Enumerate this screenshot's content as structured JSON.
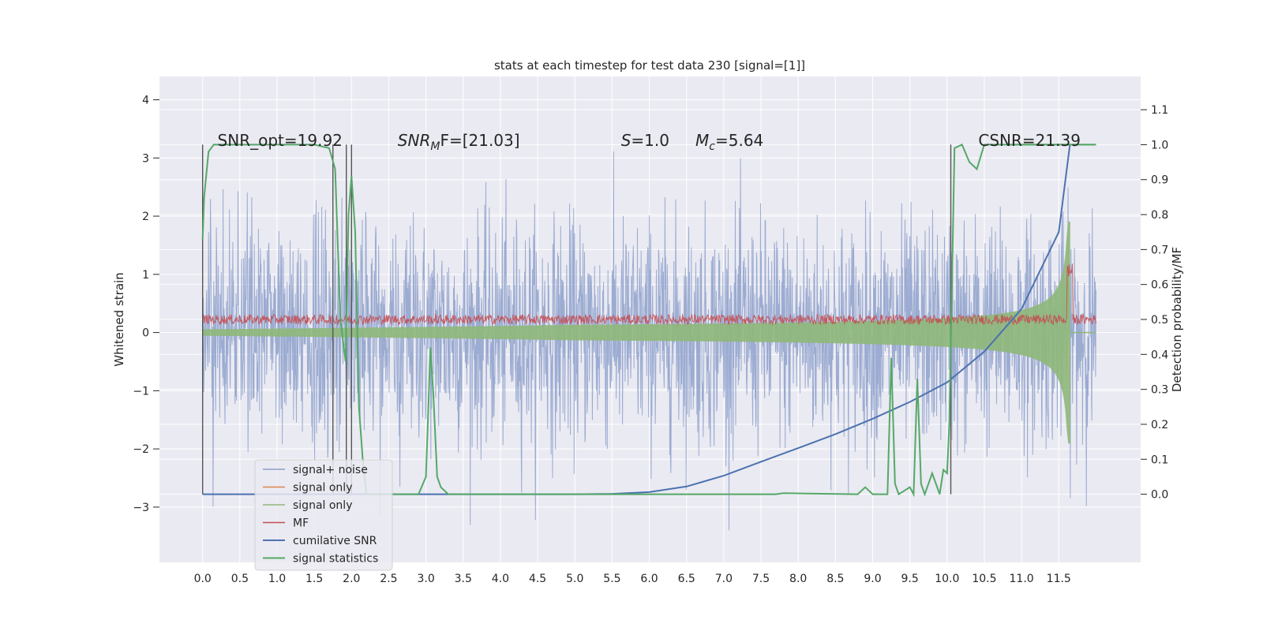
{
  "chart_data": {
    "type": "line",
    "title": "stats at each timestep for test data 230 [signal=[1]]",
    "ylabel": "Whitened strain",
    "y2label": "Detection probability/MF",
    "xlim": [
      -0.58,
      12.6
    ],
    "ylim": [
      -3.95,
      4.4
    ],
    "y2lim": [
      -0.195,
      1.195
    ],
    "x_ticks": [
      "0.0",
      "0.5",
      "1.0",
      "1.5",
      "2.0",
      "2.5",
      "3.0",
      "3.5",
      "4.0",
      "4.5",
      "5.0",
      "5.5",
      "6.0",
      "6.5",
      "7.0",
      "7.5",
      "8.0",
      "8.5",
      "9.0",
      "9.5",
      "10.0",
      "10.5",
      "11.0",
      "11.5"
    ],
    "y_ticks": [
      "4",
      "3",
      "2",
      "1",
      "0",
      "−1",
      "−2",
      "−3"
    ],
    "y2_ticks": [
      "1.1",
      "1.0",
      "0.9",
      "0.8",
      "0.7",
      "0.6",
      "0.5",
      "0.4",
      "0.3",
      "0.2",
      "0.1",
      "0.0"
    ],
    "grid": true,
    "legend_position": "lower-left",
    "legend": [
      "signal+ noise",
      "signal only",
      "signal only",
      "MF",
      "cumilative SNR",
      "signal statistics"
    ],
    "annotations": [
      {
        "text": "SNR_opt=19.92",
        "x": 0.2
      },
      {
        "text": "SNR",
        "sub": "M",
        "rest": "F=[21.03]",
        "x": 2.62
      },
      {
        "text": "S",
        "rest": "=1.0",
        "x": 5.62
      },
      {
        "text": "M",
        "sub": "c",
        "rest": "=5.64",
        "x": 6.62
      },
      {
        "text": "CSNR=21.39",
        "x": 10.42
      }
    ],
    "series": [
      {
        "name": "signal+ noise",
        "color": "#8da0cb",
        "kind": "noise",
        "axis": "left",
        "x_range": [
          0.0,
          12.0
        ],
        "std": 1.0
      },
      {
        "name": "signal only",
        "color": "#dd8452",
        "kind": "chirp",
        "axis": "left",
        "x_range": [
          0.0,
          12.0
        ],
        "peak_time": 11.65,
        "peak_amplitude": 1.9
      },
      {
        "name": "signal only",
        "color": "#8fb87a",
        "kind": "chirp",
        "axis": "left",
        "x_range": [
          0.0,
          12.0
        ],
        "peak_time": 11.65,
        "peak_amplitude": 1.9
      },
      {
        "name": "MF",
        "color": "#c44e52",
        "kind": "mf",
        "axis": "right",
        "x_range": [
          0.0,
          12.0
        ],
        "level": 0.5
      },
      {
        "name": "cumilative SNR",
        "color": "#4c72b0",
        "kind": "line",
        "axis": "right",
        "x": [
          0.0,
          1.0,
          2.0,
          3.0,
          4.0,
          5.0,
          5.5,
          6.0,
          6.5,
          7.0,
          7.5,
          8.0,
          8.5,
          9.0,
          9.5,
          10.0,
          10.5,
          11.0,
          11.5,
          11.65
        ],
        "y": [
          0.0,
          0.0,
          0.0,
          0.0,
          0.0,
          0.0,
          0.001,
          0.006,
          0.022,
          0.053,
          0.093,
          0.132,
          0.172,
          0.216,
          0.264,
          0.32,
          0.408,
          0.53,
          0.75,
          1.0
        ]
      },
      {
        "name": "signal statistics",
        "color": "#55a868",
        "kind": "line",
        "axis": "right",
        "x": [
          0.0,
          0.02,
          0.08,
          0.15,
          0.5,
          1.0,
          1.5,
          1.7,
          1.78,
          1.85,
          1.92,
          1.96,
          2.0,
          2.05,
          2.1,
          2.15,
          2.2,
          2.4,
          2.6,
          2.9,
          3.0,
          3.06,
          3.1,
          3.15,
          3.2,
          3.3,
          3.5,
          7.0,
          7.7,
          7.8,
          8.8,
          8.9,
          9.0,
          9.1,
          9.2,
          9.25,
          9.3,
          9.35,
          9.5,
          9.55,
          9.6,
          9.65,
          9.7,
          9.8,
          9.9,
          9.95,
          10.0,
          10.03,
          10.1,
          10.2,
          10.3,
          10.4,
          10.5,
          10.8,
          12.0
        ],
        "y": [
          0.73,
          0.85,
          0.98,
          1.0,
          1.0,
          1.0,
          1.0,
          0.99,
          0.93,
          0.5,
          0.38,
          0.8,
          0.91,
          0.75,
          0.25,
          0.1,
          0.0,
          0.0,
          0.0,
          0.0,
          0.05,
          0.42,
          0.28,
          0.05,
          0.02,
          0.0,
          0.0,
          0.0,
          0.0,
          0.003,
          0.0,
          0.02,
          0.0,
          0.0,
          0.0,
          0.39,
          0.03,
          0.0,
          0.02,
          0.0,
          0.33,
          0.03,
          0.0,
          0.06,
          0.0,
          0.07,
          0.06,
          0.2,
          0.99,
          1.0,
          0.95,
          0.93,
          1.0,
          1.0,
          1.0
        ]
      }
    ],
    "vertical_lines": [
      0.0,
      1.75,
      1.93,
      2.0,
      10.05
    ]
  }
}
